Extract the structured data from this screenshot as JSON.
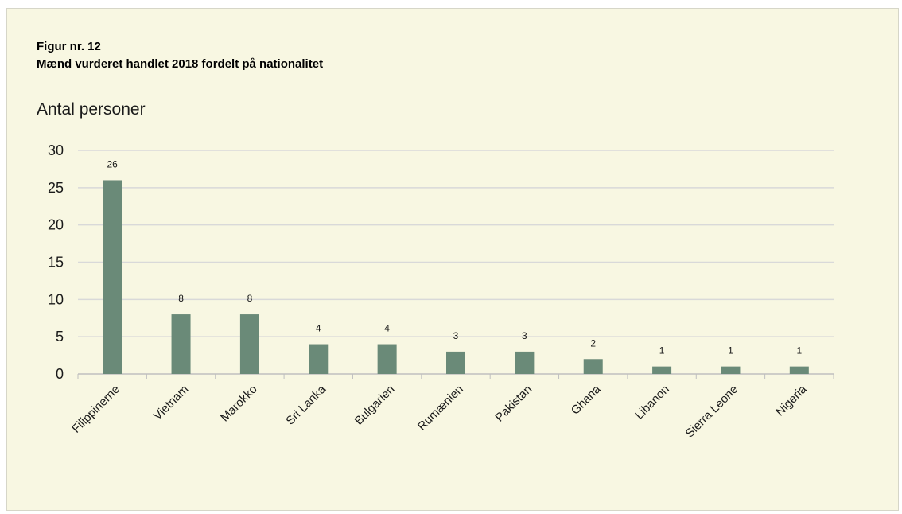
{
  "figure": {
    "label": "Figur nr. 12",
    "title": "Mænd vurderet handlet 2018 fordelt på nationalitet",
    "unit_label": "Antal personer"
  },
  "colors": {
    "bar": "#6a8a78",
    "grid": "#d9d9d9",
    "panel": "#f8f7e2"
  },
  "chart_data": {
    "type": "bar",
    "title": "Mænd vurderet handlet 2018 fordelt på nationalitet",
    "ylabel": "Antal personer",
    "xlabel": "",
    "categories": [
      "Filippinerne",
      "Vietnam",
      "Marokko",
      "Sri Lanka",
      "Bulgarien",
      "Rumænien",
      "Pakistan",
      "Ghana",
      "Libanon",
      "Sierra Leone",
      "Nigeria"
    ],
    "values": [
      26,
      8,
      8,
      4,
      4,
      3,
      3,
      2,
      1,
      1,
      1
    ],
    "ylim": [
      0,
      30
    ],
    "yticks": [
      0,
      5,
      10,
      15,
      20,
      25,
      30
    ],
    "grid": true,
    "data_labels": true,
    "legend": "none"
  }
}
